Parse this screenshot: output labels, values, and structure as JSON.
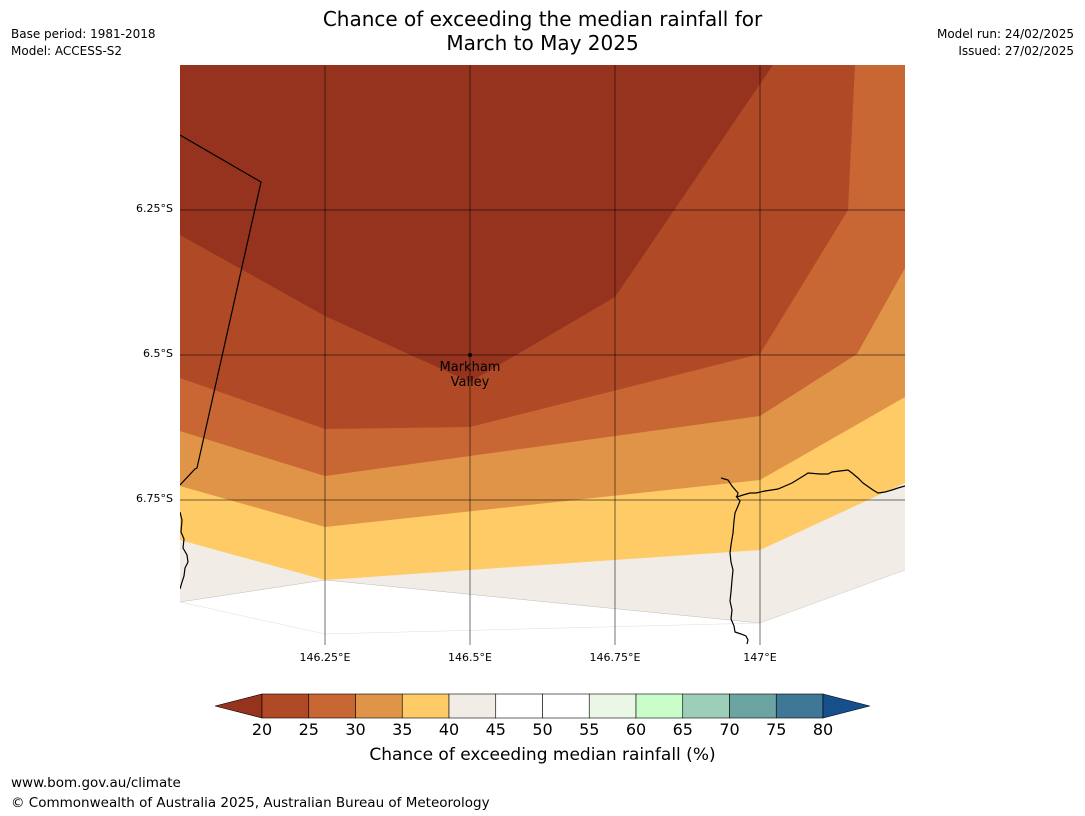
{
  "header": {
    "title_line1": "Chance of exceeding the median rainfall for",
    "title_line2": "March to May 2025",
    "base_period": "Base period: 1981-2018",
    "model": "Model: ACCESS-S2",
    "model_run": "Model run: 24/02/2025",
    "issued": "Issued: 27/02/2025"
  },
  "map": {
    "lat_labels": [
      "6.25°S",
      "6.5°S",
      "6.75°S"
    ],
    "lon_labels": [
      "146.25°E",
      "146.5°E",
      "146.75°E",
      "147°E"
    ],
    "place": {
      "name_line1": "Markham",
      "name_line2": "Valley"
    },
    "band_colors": {
      "below_20": "#96331e",
      "20_25": "#b04a26",
      "25_30": "#c86634",
      "30_35": "#e09448",
      "35_40": "#fecb66",
      "40_45": "#f1ece6",
      "45_55": "#ffffff"
    }
  },
  "colorbar": {
    "title": "Chance of exceeding median rainfall (%)",
    "ticks": [
      "20",
      "25",
      "30",
      "35",
      "40",
      "45",
      "50",
      "55",
      "60",
      "65",
      "70",
      "75",
      "80"
    ],
    "below_color": "#96331e",
    "above_color": "#154f8c",
    "colors": [
      "#b04a26",
      "#c86634",
      "#e09448",
      "#fecb66",
      "#f1ece6",
      "#ffffff",
      "#ffffff",
      "#eaf6e6",
      "#c8fcc8",
      "#9dcfb8",
      "#6ca3a3",
      "#3f7796"
    ]
  },
  "footer": {
    "url": "www.bom.gov.au/climate",
    "copyright": "© Commonwealth of Australia 2025, Australian Bureau of Meteorology"
  }
}
